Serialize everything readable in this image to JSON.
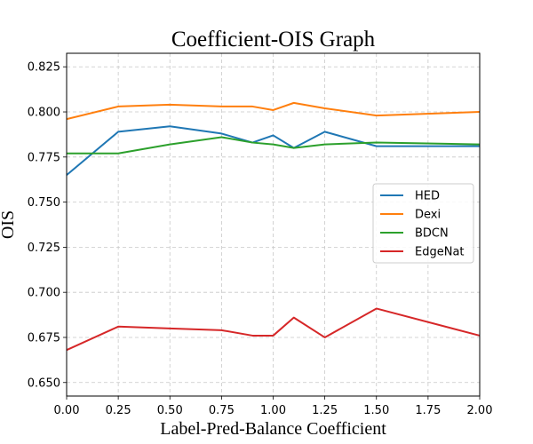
{
  "chart_data": {
    "type": "line",
    "title": "Coefficient-OIS Graph",
    "xlabel": "Label-Pred-Balance Coefficient",
    "ylabel": "OIS",
    "xlim": [
      0.0,
      2.0
    ],
    "ylim": [
      0.6425,
      0.8325
    ],
    "grid": true,
    "legend_position": "center-right",
    "xticks": [
      0.0,
      0.25,
      0.5,
      0.75,
      1.0,
      1.25,
      1.5,
      1.75,
      2.0
    ],
    "xtick_labels": [
      "0.00",
      "0.25",
      "0.50",
      "0.75",
      "1.00",
      "1.25",
      "1.50",
      "1.75",
      "2.00"
    ],
    "yticks": [
      0.65,
      0.675,
      0.7,
      0.725,
      0.75,
      0.775,
      0.8,
      0.825
    ],
    "ytick_labels": [
      "0.650",
      "0.675",
      "0.700",
      "0.725",
      "0.750",
      "0.775",
      "0.800",
      "0.825"
    ],
    "x": [
      0.0,
      0.25,
      0.5,
      0.75,
      0.9,
      1.0,
      1.1,
      1.25,
      1.5,
      2.0
    ],
    "series": [
      {
        "name": "HED",
        "color": "#1f77b4",
        "values": [
          0.765,
          0.789,
          0.792,
          0.788,
          0.783,
          0.787,
          0.78,
          0.789,
          0.781,
          0.781
        ]
      },
      {
        "name": "Dexi",
        "color": "#ff7f0e",
        "values": [
          0.796,
          0.803,
          0.804,
          0.803,
          0.803,
          0.801,
          0.805,
          0.802,
          0.798,
          0.8
        ]
      },
      {
        "name": "BDCN",
        "color": "#2ca02c",
        "values": [
          0.777,
          0.777,
          0.782,
          0.786,
          0.783,
          0.782,
          0.78,
          0.782,
          0.783,
          0.782
        ]
      },
      {
        "name": "EdgeNat",
        "color": "#d62728",
        "values": [
          0.668,
          0.681,
          0.68,
          0.679,
          0.676,
          0.676,
          0.686,
          0.675,
          0.691,
          0.676
        ]
      }
    ]
  }
}
